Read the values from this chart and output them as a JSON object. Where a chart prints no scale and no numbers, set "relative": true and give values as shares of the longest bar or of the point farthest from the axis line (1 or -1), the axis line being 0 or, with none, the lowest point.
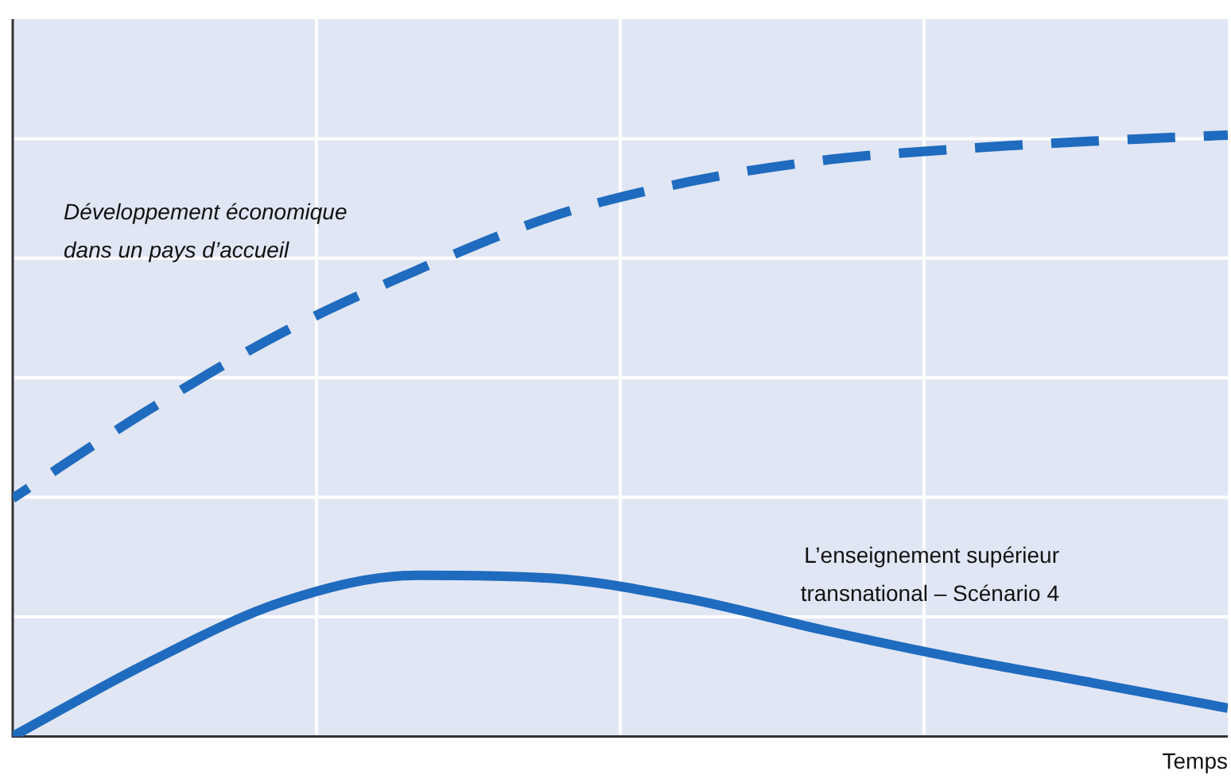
{
  "chart_data": {
    "type": "line",
    "relative": true,
    "xlabel": "Temps",
    "grid": true,
    "legend": false,
    "marker": "none",
    "categories": [
      null,
      null,
      null,
      null,
      null,
      null,
      null,
      null,
      null,
      null
    ],
    "series": [
      {
        "name": "Développement économique dans un pays d’accueil",
        "color": "#1f6bbf",
        "line_style": "dashed",
        "values": [
          0.396,
          0.542,
          0.672,
          0.776,
          0.865,
          0.922,
          0.958,
          0.977,
          0.99,
          1
        ]
      },
      {
        "name": "L’enseignement supérieur transnational – Scénario 4",
        "color": "#1f6bbf",
        "line_style": "solid",
        "values": [
          0,
          0.122,
          0.224,
          0.268,
          0.263,
          0.229,
          0.177,
          0.13,
          0.089,
          0.047
        ]
      }
    ]
  }
}
